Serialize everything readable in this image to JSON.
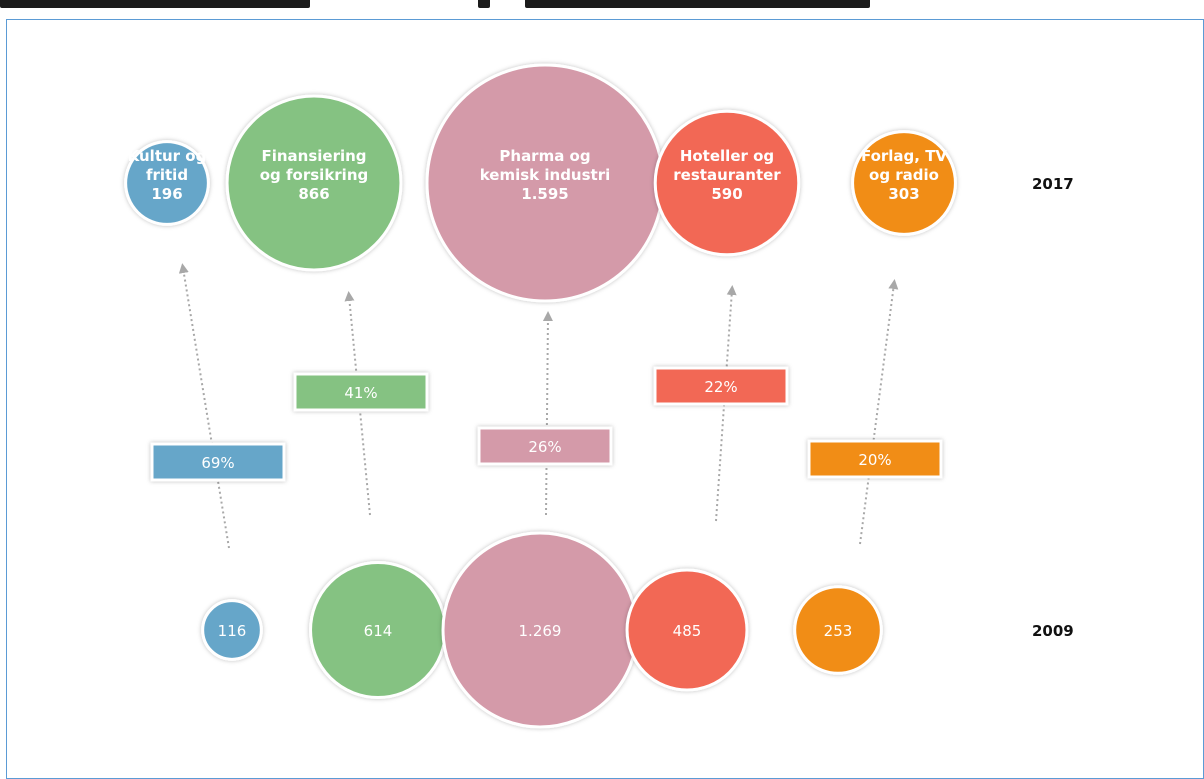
{
  "chart_data": {
    "type": "bubble",
    "title": "",
    "years": [
      "2017",
      "2009"
    ],
    "categories": [
      {
        "name_lines": [
          "Kultur og",
          "fritid"
        ],
        "color": "#66a6c9",
        "value_2009": 116,
        "label_2009": "116",
        "value_2017": 196,
        "label_2017": "196",
        "growth": "69%"
      },
      {
        "name_lines": [
          "Finansiering",
          "og forsikring"
        ],
        "color": "#85c282",
        "value_2009": 614,
        "label_2009": "614",
        "value_2017": 866,
        "label_2017": "866",
        "growth": "41%"
      },
      {
        "name_lines": [
          "Pharma og",
          "kemisk industri"
        ],
        "color": "#d49aa9",
        "value_2009": 1269,
        "label_2009": "1.269",
        "value_2017": 1595,
        "label_2017": "1.595",
        "growth": "26%"
      },
      {
        "name_lines": [
          "Hoteller og",
          "restauranter"
        ],
        "color": "#f26855",
        "value_2009": 485,
        "label_2009": "485",
        "value_2017": 590,
        "label_2017": "590",
        "growth": "22%"
      },
      {
        "name_lines": [
          "Forlag, TV",
          "og radio"
        ],
        "color": "#f18d19",
        "value_2009": 253,
        "label_2009": "253",
        "value_2017": 303,
        "label_2017": "303",
        "growth": "20%"
      }
    ]
  }
}
